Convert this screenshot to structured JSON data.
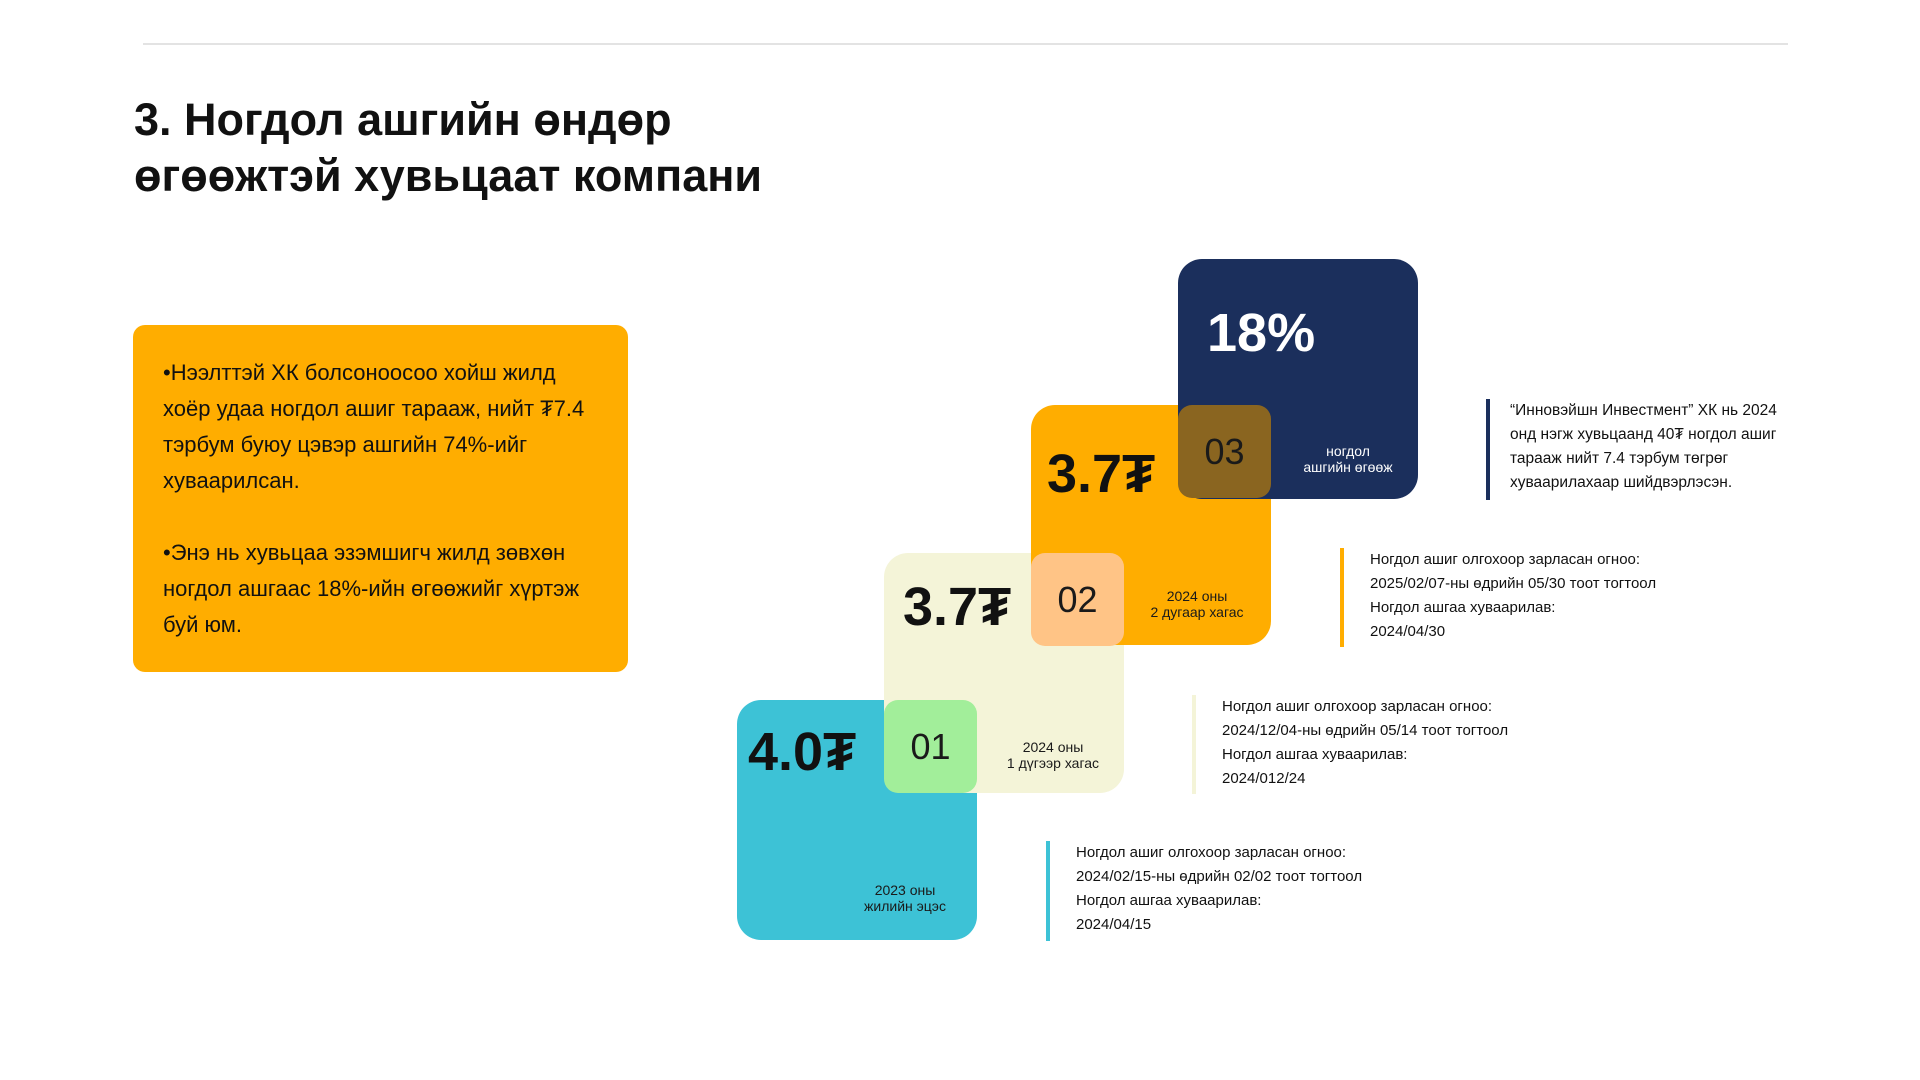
{
  "title": {
    "line1": "3. Ногдол ашгийн өндөр",
    "line2": "өгөөжтэй хувьцаат компани"
  },
  "info_box": {
    "paragraph1": "•Нээлттэй ХК болсоноосоо хойш жилд хоёр удаа ногдол ашиг тарааж, нийт ₮7.4 тэрбум буюу цэвэр ашгийн 74%-ийг хуваарилсан.",
    "paragraph2": "•Энэ нь хувьцаа эзэмшигч жилд зөвхөн ногдол ашгаас 18%-ийн өгөөжийг  хүртэж буй юм."
  },
  "cards": [
    {
      "amount": "4.0₮",
      "step": "01",
      "period_line1": "2023 оны",
      "period_line2": "жилийн эцэс",
      "color": "#3dc2d6"
    },
    {
      "amount": "3.7₮",
      "step": "02",
      "period_line1": "2024 оны",
      "period_line2": "1 дүгээр хагас",
      "color": "#f4f4d8"
    },
    {
      "amount": "3.7₮",
      "step": "03",
      "period_line1": "2024 оны",
      "period_line2": "2 дугаар хагас",
      "color": "#ffad00"
    },
    {
      "amount": "18%",
      "caption_line1": "ногдол",
      "caption_line2": "ашгийн өгөөж",
      "color": "#1b2f5c"
    }
  ],
  "overlap_colors": {
    "step1": "#a2ee9a",
    "step2": "#ffc486",
    "step3": "#8a6520"
  },
  "notes": {
    "navy": {
      "lines": [
        "“Инновэйшн Инвестмент” ХК нь 2024",
        "онд нэгж хувьцаанд 40₮ ногдол ашиг",
        "тарааж нийт 7.4 тэрбум төгрөг",
        "хуваарилахаар шийдвэрлэсэн."
      ],
      "color": "#1b2f5c"
    },
    "orange": {
      "lines": [
        "Ногдол ашиг олгохоор зарласан огноо:",
        "2025/02/07-ны өдрийн 05/30 тоот тогтоол",
        "Ногдол ашгаа хуваарилав:",
        "2024/04/30"
      ],
      "color": "#ffad00"
    },
    "cream": {
      "lines": [
        "Ногдол ашиг олгохоор зарласан огноо:",
        "2024/12/04-ны өдрийн 05/14 тоот тогтоол",
        "Ногдол ашгаа хуваарилав:",
        "2024/012/24"
      ],
      "color": "#f4f4d8"
    },
    "teal": {
      "lines": [
        "Ногдол ашиг олгохоор зарласан огноо:",
        "2024/02/15-ны өдрийн 02/02 тоот тогтоол",
        "Ногдол ашгаа хуваарилав:",
        "2024/04/15"
      ],
      "color": "#3dc2d6"
    }
  }
}
